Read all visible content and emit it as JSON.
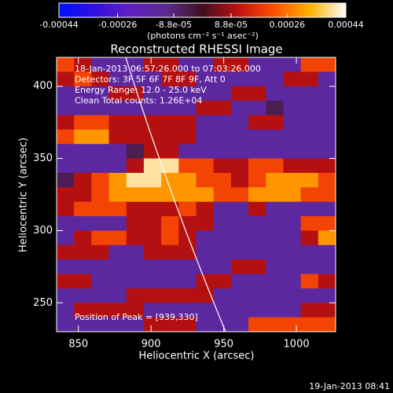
{
  "chart_data": {
    "type": "heatmap",
    "title": "Reconstructed RHESSI Image",
    "xlabel": "Heliocentric X (arcsec)",
    "ylabel": "Heliocentric Y (arcsec)",
    "xlim": [
      835,
      1027
    ],
    "ylim": [
      230,
      420
    ],
    "xticks": [
      850,
      900,
      950,
      1000
    ],
    "yticks": [
      250,
      300,
      350,
      400
    ],
    "colorbar_label": "(photons cm⁻² s⁻¹ asec⁻²)",
    "colorbar_lim": [
      -0.00044,
      0.00044
    ],
    "colorbar_ticks": [
      -0.00044,
      -0.00026,
      {
        "value": -8.8e-05,
        "label": "-8.8e-05"
      },
      {
        "value": 8.8e-05,
        "label": "8.8e-05"
      },
      0.00026,
      0.00044
    ],
    "colormap": [
      "#0010ff",
      "#3010e0",
      "#6020c0",
      "#5a2c8c",
      "#401020",
      "#c01010",
      "#ff5000",
      "#ffb000",
      "#ffffff"
    ],
    "annotations": [
      "18-Jan-2013 06:57:26.000 to 07:03:26.000",
      "Detectors: 3F 5F 6F 7F 8F 9F, Att 0",
      "Energy Range: 12.0 - 25.0 keV",
      "Clean     Total counts: 1.26E+04"
    ],
    "peak_label": "Position of Peak = [939,330]",
    "footer": "19-Jan-2013 08:41",
    "x": [
      841,
      853,
      865,
      877,
      889,
      901,
      913,
      925,
      937,
      949,
      961,
      973,
      985,
      997,
      1009,
      1021
    ],
    "y": [
      415,
      405,
      395,
      385,
      375,
      365,
      355,
      345,
      335,
      325,
      315,
      305,
      295,
      285,
      275,
      265,
      255,
      245,
      235
    ],
    "z": [
      [
        0.0002,
        0.0001,
        -0.00015,
        -0.00015,
        -0.00015,
        0.0001,
        0.0001,
        -0.00015,
        -0.00015,
        0.0001,
        0.0001,
        -0.00015,
        -0.00015,
        -0.00015,
        0.0002,
        0.0002
      ],
      [
        0.0001,
        0.0002,
        0.0001,
        -0.00015,
        -0.00015,
        -0.00015,
        0.0001,
        0.0001,
        -0.00015,
        -0.00015,
        -0.00015,
        -0.00015,
        -0.00015,
        0.0001,
        0.0001,
        -0.00015
      ],
      [
        -0.00015,
        -0.00015,
        -0.00015,
        0.0001,
        0.0001,
        -0.00015,
        -0.00015,
        -0.00015,
        -0.00015,
        -0.00015,
        0.0001,
        0.0001,
        -0.00015,
        -0.00015,
        -0.00015,
        -0.00015
      ],
      [
        -0.00015,
        -0.00015,
        -0.00015,
        -0.00015,
        -0.00015,
        -0.00015,
        -0.00015,
        -0.00015,
        0.0001,
        0.0001,
        -0.00015,
        -0.00015,
        -5e-05,
        -0.00015,
        -0.00015,
        -0.00015
      ],
      [
        0.0001,
        0.0002,
        0.0002,
        0.0001,
        0.0001,
        0.0001,
        0.0001,
        0.0001,
        -0.00015,
        -0.00015,
        -0.00015,
        0.0001,
        0.0001,
        -0.00015,
        -0.00015,
        -0.00015
      ],
      [
        0.0002,
        0.0003,
        0.0003,
        0.0001,
        0.0001,
        0.0001,
        0.0001,
        0.0001,
        -0.00015,
        -0.00015,
        -0.00015,
        -0.00015,
        -0.00015,
        -0.00015,
        -0.00015,
        -0.00015
      ],
      [
        -0.00015,
        -0.00015,
        -0.00015,
        -0.00015,
        -5e-05,
        0.0001,
        0.0001,
        -0.00015,
        -0.00015,
        -0.00015,
        -0.00015,
        -0.00015,
        -0.00015,
        -0.00015,
        -0.00015,
        -0.00015
      ],
      [
        -0.00015,
        -0.00015,
        -0.00015,
        -0.00015,
        0.0001,
        0.0004,
        0.0004,
        0.0002,
        0.0002,
        0.0001,
        0.0001,
        0.0002,
        0.0002,
        0.0001,
        0.0001,
        0.0001
      ],
      [
        -5e-05,
        0.0001,
        0.0002,
        0.0003,
        0.0004,
        0.0004,
        0.0003,
        0.0003,
        0.0002,
        0.0002,
        0.0001,
        0.0002,
        0.0003,
        0.0003,
        0.0003,
        0.0002
      ],
      [
        0.0001,
        0.0001,
        0.0002,
        0.0003,
        0.0003,
        0.0003,
        0.0003,
        0.0003,
        0.0003,
        0.0002,
        0.0002,
        0.0003,
        0.0003,
        0.0003,
        0.0002,
        0.0002
      ],
      [
        0.0001,
        0.0002,
        0.0002,
        0.0002,
        0.0001,
        0.0001,
        0.0001,
        0.0002,
        0.0001,
        -0.00015,
        -0.00015,
        0.0001,
        -0.00015,
        -0.00015,
        -0.00015,
        -0.00015
      ],
      [
        -0.00015,
        -0.00015,
        -0.00015,
        -0.00015,
        0.0001,
        0.0001,
        0.0002,
        0.0001,
        0.0001,
        -0.00015,
        -0.00015,
        -0.00015,
        -0.00015,
        -0.00015,
        0.0002,
        0.0002
      ],
      [
        -0.00015,
        0.0001,
        0.0002,
        0.0002,
        0.0001,
        0.0001,
        0.0002,
        0.0001,
        -0.00015,
        -0.00015,
        -0.00015,
        -0.00015,
        -0.00015,
        -0.00015,
        0.0001,
        0.0003
      ],
      [
        0.0001,
        0.0001,
        0.0001,
        -0.00015,
        -0.00015,
        0.0001,
        0.0001,
        0.0001,
        -0.00015,
        -0.00015,
        -0.00015,
        -0.00015,
        -0.00015,
        -0.00015,
        -0.00015,
        -0.00015
      ],
      [
        -0.00015,
        -0.00015,
        -0.00015,
        -0.00015,
        -0.00015,
        -0.00015,
        -0.00015,
        -0.00015,
        -0.00015,
        -0.00015,
        0.0001,
        0.0001,
        -0.00015,
        -0.00015,
        -0.00015,
        -0.00015
      ],
      [
        0.0001,
        0.0001,
        -0.00015,
        -0.00015,
        -0.00015,
        -0.00015,
        -0.00015,
        -0.00015,
        0.0001,
        0.0001,
        -0.00015,
        -0.00015,
        -0.00015,
        -0.00015,
        0.0002,
        0.0001
      ],
      [
        -0.00015,
        -0.00015,
        -0.00015,
        -0.00015,
        0.0001,
        0.0001,
        0.0001,
        0.0001,
        0.0001,
        -0.00015,
        -0.00015,
        -0.00015,
        -0.00015,
        -0.00015,
        -0.00015,
        -0.00015
      ],
      [
        -0.00015,
        0.0001,
        0.0001,
        0.0001,
        0.0001,
        -0.00015,
        -0.00015,
        -0.00015,
        -0.00015,
        -0.00015,
        -0.00015,
        -0.00015,
        -0.00015,
        -0.00015,
        0.0001,
        0.0001
      ],
      [
        -0.00015,
        -0.00015,
        -0.00015,
        -0.00015,
        -0.00015,
        0.0001,
        0.0001,
        0.0001,
        -0.00015,
        -0.00015,
        -0.00015,
        0.0002,
        0.0002,
        0.0002,
        0.0002,
        0.0002
      ]
    ]
  }
}
